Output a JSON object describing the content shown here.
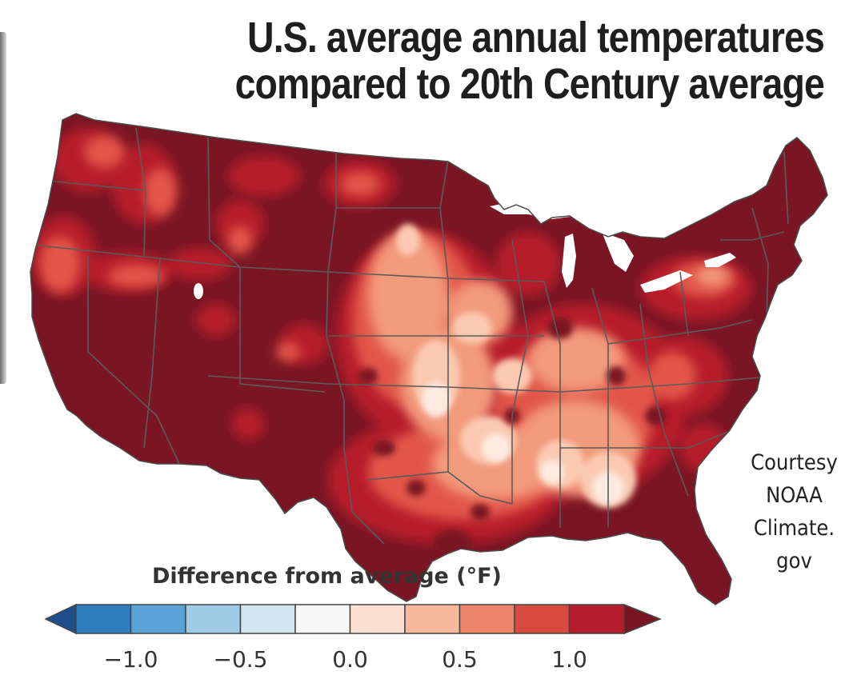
{
  "title": {
    "line1": "U.S. average annual temperatures",
    "line2": "compared to 20th Century average"
  },
  "legend": {
    "title": "Difference from average (°F)",
    "bins": [
      "#1f4e8c",
      "#2f7fc0",
      "#5aa3d6",
      "#9fcbe7",
      "#d3e7f3",
      "#f7f7f7",
      "#fde0d2",
      "#f8b89b",
      "#ee8468",
      "#d64a3f",
      "#b71c2c",
      "#7a1624"
    ],
    "ticks": [
      {
        "label": "−1.0",
        "value": -1.0
      },
      {
        "label": "−0.5",
        "value": -0.5
      },
      {
        "label": "0.0",
        "value": 0.0
      },
      {
        "label": "0.5",
        "value": 0.5
      },
      {
        "label": "1.0",
        "value": 1.0
      }
    ]
  },
  "credit": {
    "line1": "Courtesy",
    "line2": "NOAA",
    "line3": "Climate.",
    "line4": "gov"
  },
  "map": {
    "region": "Contiguous United States",
    "base_color": "#7a1624",
    "state_border_color": "#5a5a5a"
  }
}
